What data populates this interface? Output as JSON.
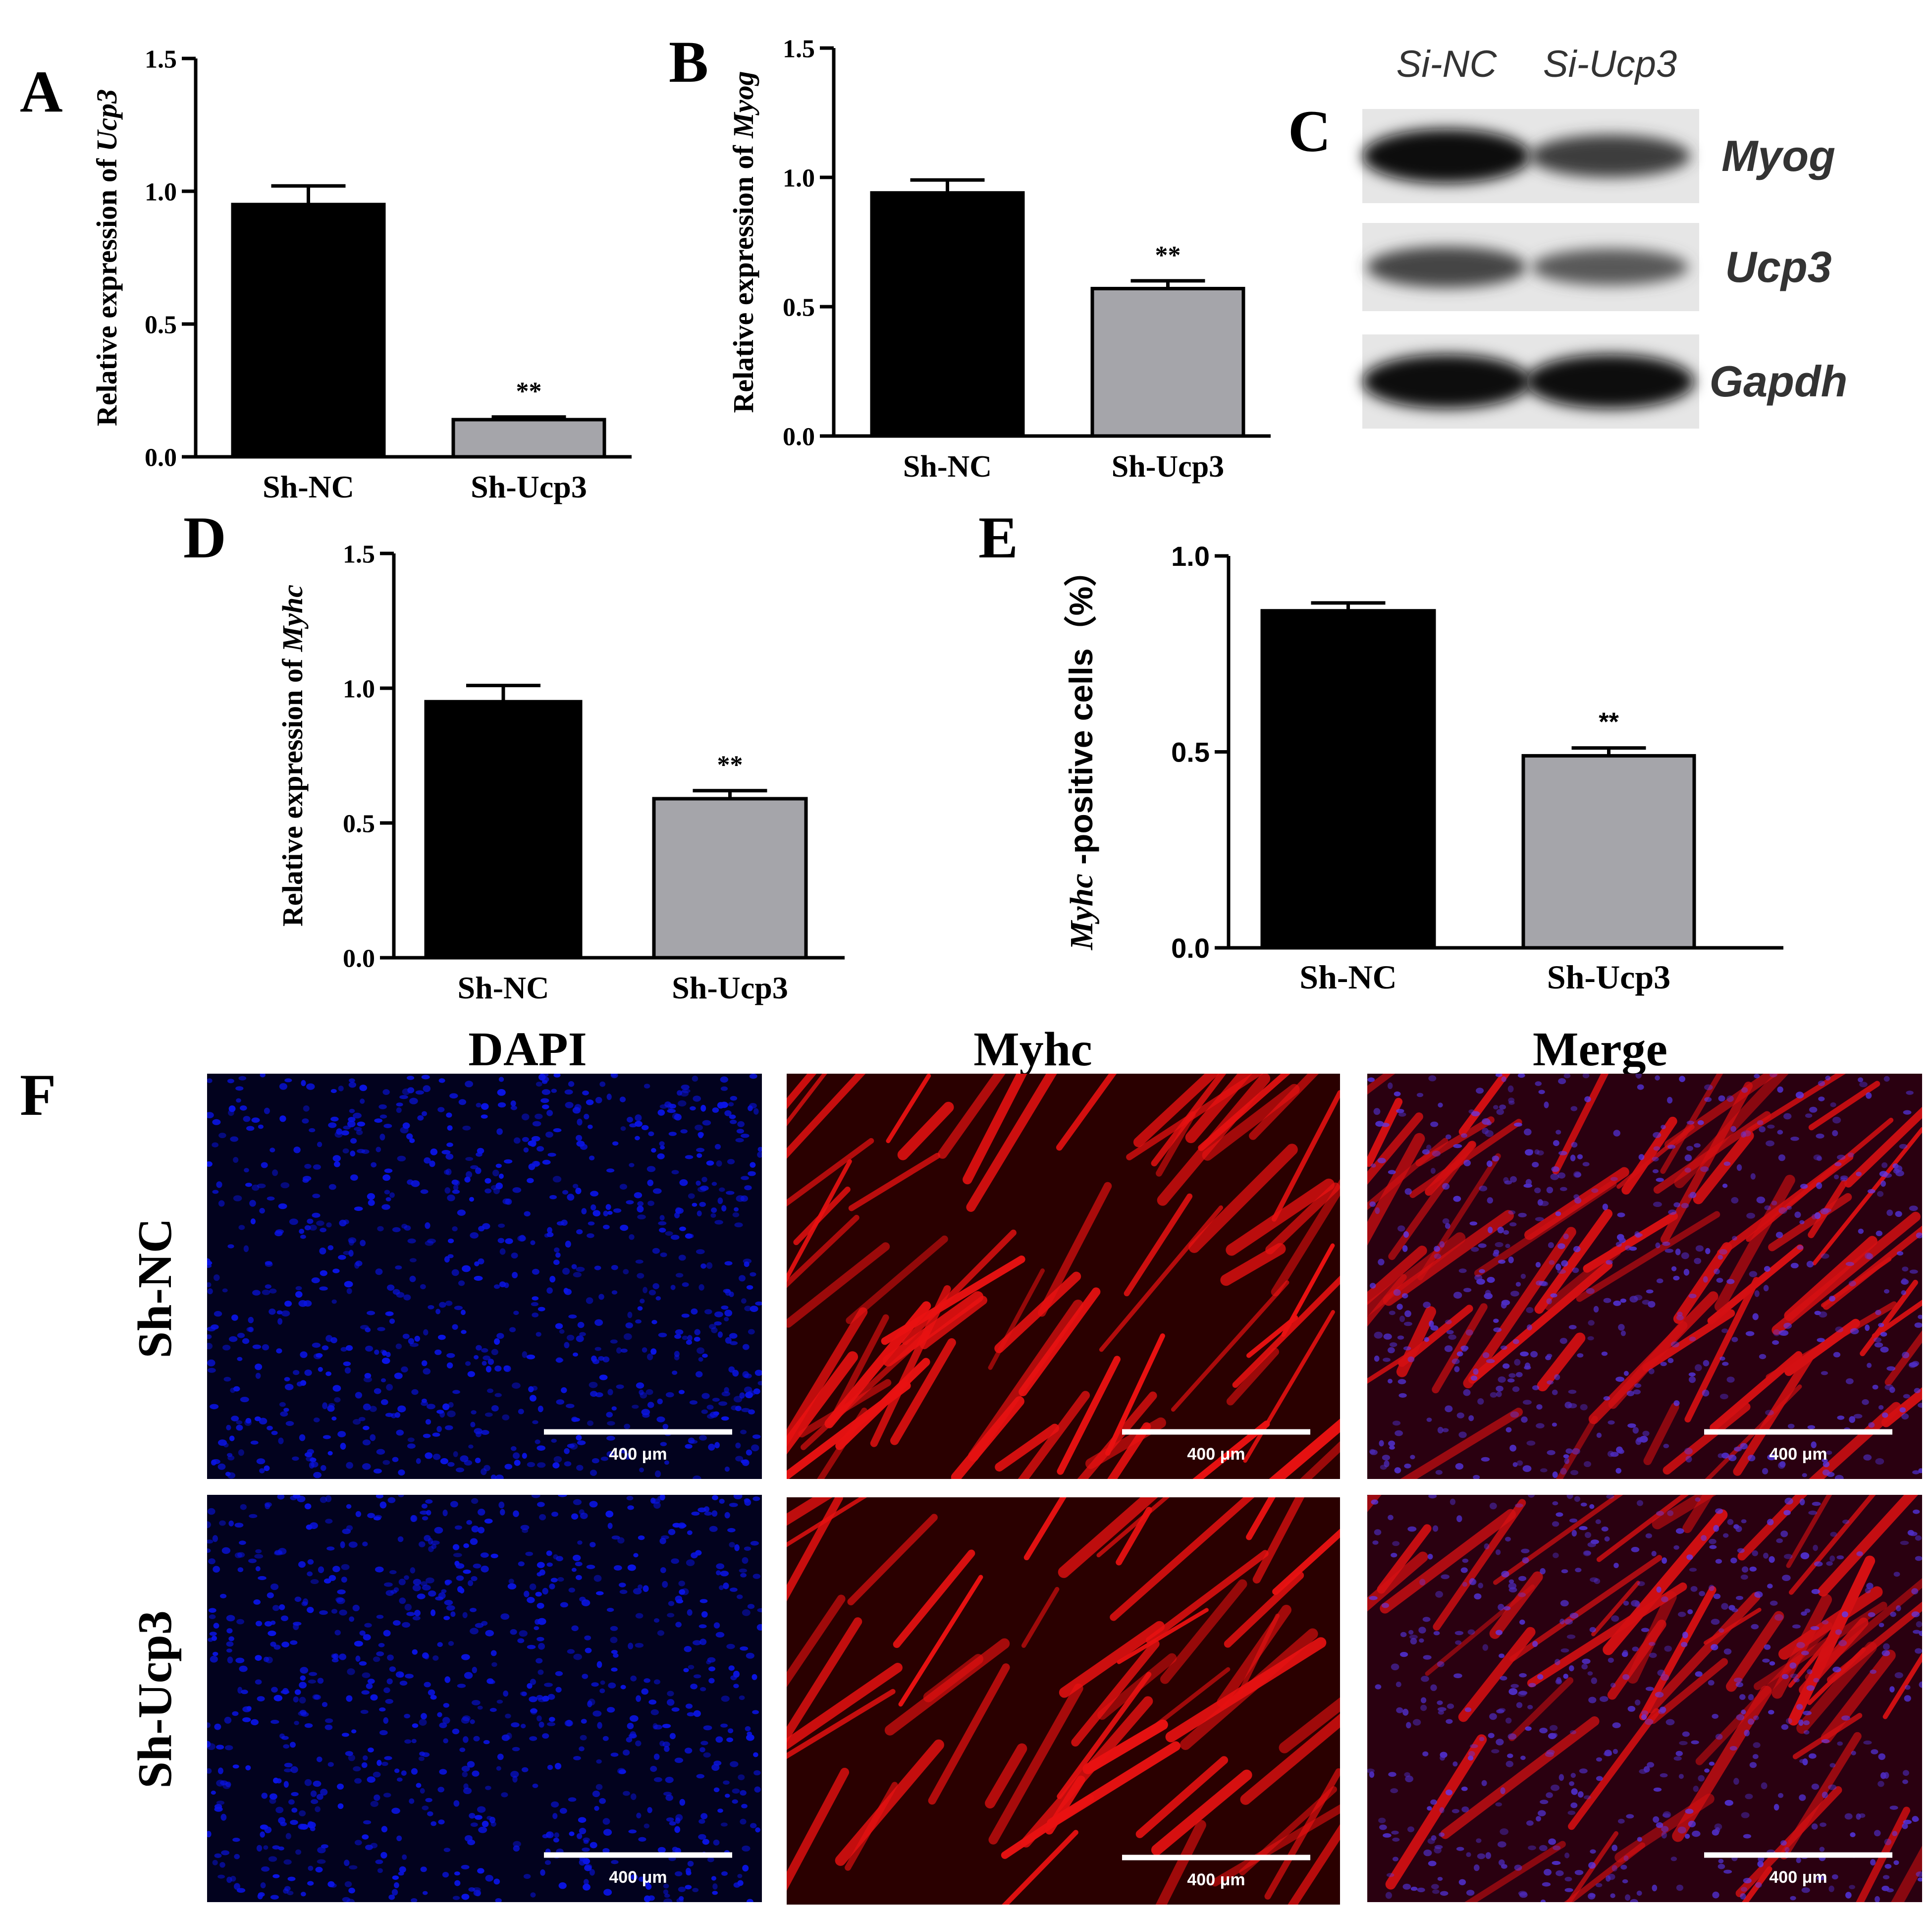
{
  "panels": {
    "A": "A",
    "B": "B",
    "C": "C",
    "D": "D",
    "E": "E",
    "F": "F"
  },
  "colors": {
    "black_bar": "#000000",
    "gray_bar": "#a5a5aa",
    "dapi": "#0a14e6",
    "myhc": "#ff1414"
  },
  "chart_data": [
    {
      "panel": "A",
      "type": "bar",
      "categories": [
        "Sh-NC",
        "Sh-Ucp3"
      ],
      "values": [
        0.95,
        0.14
      ],
      "errors": [
        0.07,
        0.01
      ],
      "significance": [
        "",
        "**"
      ],
      "ylabel_prefix": "Relative expression of ",
      "ylabel_gene": "Ucp3",
      "ylim": [
        0,
        1.5
      ],
      "yticks": [
        "0.0",
        "0.5",
        "1.0",
        "1.5"
      ]
    },
    {
      "panel": "B",
      "type": "bar",
      "categories": [
        "Sh-NC",
        "Sh-Ucp3"
      ],
      "values": [
        0.94,
        0.57
      ],
      "errors": [
        0.05,
        0.03
      ],
      "significance": [
        "",
        "**"
      ],
      "ylabel_prefix": "Relative expression of ",
      "ylabel_gene": "Myog",
      "ylim": [
        0,
        1.5
      ],
      "yticks": [
        "0.0",
        "0.5",
        "1.0",
        "1.5"
      ]
    },
    {
      "panel": "D",
      "type": "bar",
      "categories": [
        "Sh-NC",
        "Sh-Ucp3"
      ],
      "values": [
        0.95,
        0.59
      ],
      "errors": [
        0.06,
        0.03
      ],
      "significance": [
        "",
        "**"
      ],
      "ylabel_prefix": "Relative expression of ",
      "ylabel_gene": "Myhc",
      "ylim": [
        0,
        1.5
      ],
      "yticks": [
        "0.0",
        "0.5",
        "1.0",
        "1.5"
      ]
    },
    {
      "panel": "E",
      "type": "bar",
      "categories": [
        "Sh-NC",
        "Sh-Ucp3"
      ],
      "values": [
        0.86,
        0.49
      ],
      "errors": [
        0.02,
        0.02
      ],
      "significance": [
        "",
        "**"
      ],
      "ylabel_gene": "Myhc",
      "ylabel_suffix": " -positive cells（%）",
      "ylim": [
        0,
        1.0
      ],
      "yticks": [
        "0.0",
        "0.5",
        "1.0"
      ]
    }
  ],
  "western_blot": {
    "lanes": [
      "Si-NC",
      "Si-Ucp3"
    ],
    "bands": [
      {
        "protein": "Myog",
        "intensity": [
          1.0,
          0.6
        ]
      },
      {
        "protein": "Ucp3",
        "intensity": [
          0.55,
          0.4
        ]
      },
      {
        "protein": "Gapdh",
        "intensity": [
          1.0,
          1.0
        ]
      }
    ]
  },
  "micrographs": {
    "columns": [
      "DAPI",
      "Myhc",
      "Merge"
    ],
    "rows": [
      "Sh-NC",
      "Sh-Ucp3"
    ],
    "scale_bar": "400 μm"
  }
}
